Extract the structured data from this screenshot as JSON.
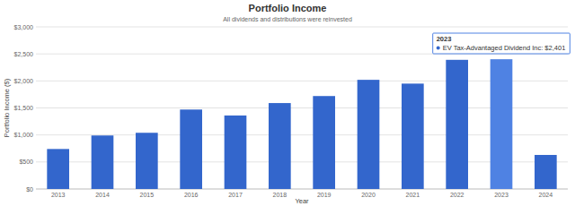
{
  "chart_data": {
    "type": "bar",
    "title": "Portfolio Income",
    "subtitle": "All dividends and distributions were reinvested",
    "x_label": "Year",
    "y_label": "Portfolio Income ($)",
    "categories": [
      "2013",
      "2014",
      "2015",
      "2016",
      "2017",
      "2018",
      "2019",
      "2020",
      "2021",
      "2022",
      "2023",
      "2024"
    ],
    "values": [
      740,
      990,
      1040,
      1470,
      1360,
      1590,
      1720,
      2020,
      1950,
      2390,
      2401,
      630
    ],
    "colors": [
      "#3366cc",
      "#3366cc",
      "#3366cc",
      "#3366cc",
      "#3366cc",
      "#3366cc",
      "#3366cc",
      "#3366cc",
      "#3366cc",
      "#3366cc",
      "#4f82e3",
      "#3366cc"
    ],
    "ylim": [
      0,
      3000
    ],
    "yticks": [
      {
        "value": 0,
        "label": "$0"
      },
      {
        "value": 500,
        "label": "$500"
      },
      {
        "value": 1000,
        "label": "$1,000"
      },
      {
        "value": 1500,
        "label": "$1,500"
      },
      {
        "value": 2000,
        "label": "$2,000"
      },
      {
        "value": 2500,
        "label": "$2,500"
      },
      {
        "value": 3000,
        "label": "$3,000"
      }
    ],
    "grid": true,
    "annotations": [
      {
        "category": "2023",
        "text": "EV Tax-Advantaged Dividend Inc: $2,401"
      }
    ]
  }
}
